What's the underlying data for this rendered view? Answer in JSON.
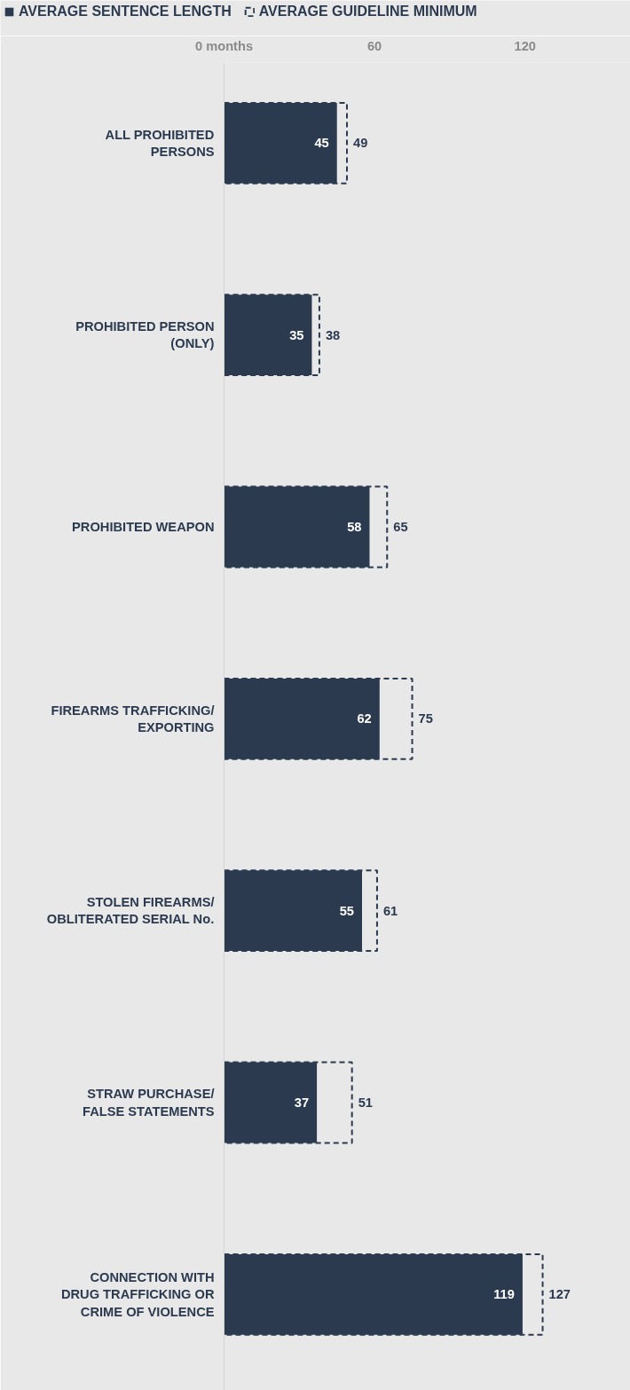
{
  "chart_data": {
    "type": "bar",
    "orientation": "horizontal",
    "categories": [
      "ALL PROHIBITED\nPERSONS",
      "PROHIBITED PERSON\n(ONLY)",
      "PROHIBITED WEAPON",
      "FIREARMS TRAFFICKING/\nEXPORTING",
      "STOLEN FIREARMS/\nOBLITERATED SERIAL No.",
      "STRAW PURCHASE/\nFALSE STATEMENTS",
      "CONNECTION WITH\nDRUG TRAFFICKING OR\nCRIME OF VIOLENCE"
    ],
    "series": [
      {
        "name": "AVERAGE SENTENCE LENGTH",
        "color": "#2b3a4f",
        "line_style": "solid",
        "values": [
          45,
          35,
          58,
          62,
          55,
          37,
          119
        ]
      },
      {
        "name": "AVERAGE GUIDELINE MINIMUM",
        "color": "#2b3a4f",
        "line_style": "dashed",
        "values": [
          49,
          38,
          65,
          75,
          61,
          51,
          127
        ]
      }
    ],
    "xlim": [
      0,
      162
    ],
    "xticks": [
      {
        "value": 0,
        "label": "0 months"
      },
      60,
      120
    ],
    "data_labels": true,
    "grid": false,
    "legend": "top"
  }
}
